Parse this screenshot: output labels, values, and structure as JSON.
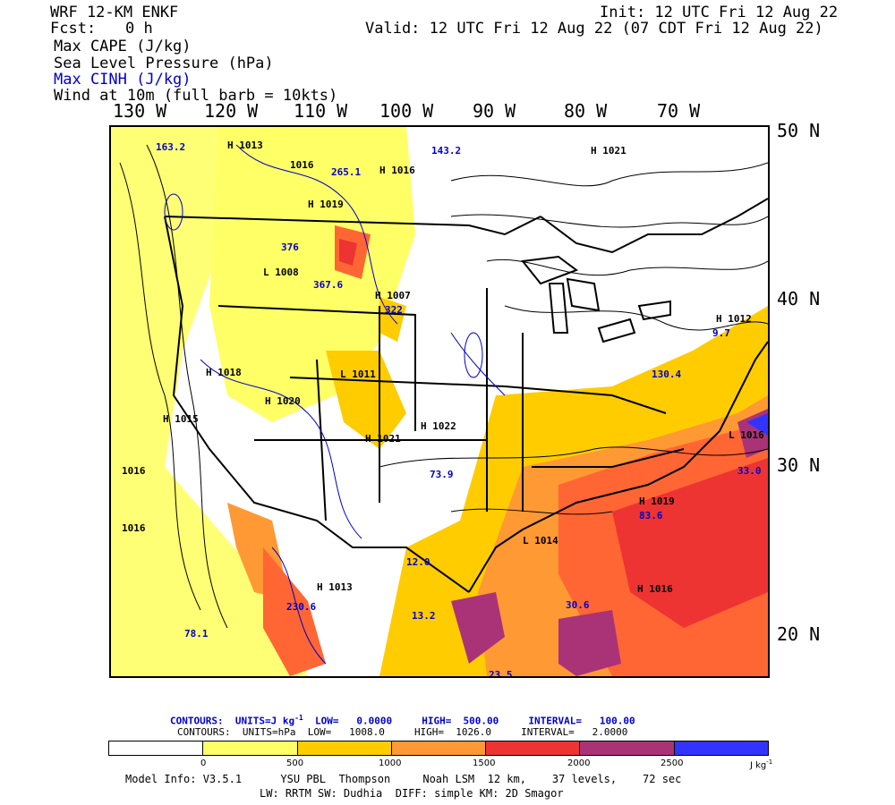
{
  "header": {
    "model": "WRF 12-KM ENKF",
    "fcst_label": "Fcst:",
    "fcst_value": "0 h",
    "init": "Init: 12 UTC Fri 12 Aug 22",
    "valid": "Valid: 12 UTC Fri 12 Aug 22 (07 CDT Fri 12 Aug 22)",
    "fields": [
      "Max CAPE (J/kg)",
      "Sea Level Pressure (hPa)",
      "Max CINH (J/kg)",
      "Wind at 10m (full barb = 10kts)"
    ]
  },
  "map": {
    "lon_labels": [
      "130 W",
      "120 W",
      "110 W",
      "100 W",
      "90 W",
      "80 W",
      "70 W"
    ],
    "lat_labels": [
      "50 N",
      "40 N",
      "30 N",
      "20 N"
    ],
    "pressure_labels": [
      {
        "type": "H",
        "value": "1016"
      },
      {
        "type": "H",
        "value": "1013"
      },
      {
        "type": "H",
        "value": "1016"
      },
      {
        "type": "H",
        "value": "1019"
      },
      {
        "type": "L",
        "value": "1008"
      },
      {
        "type": "H",
        "value": "1007"
      },
      {
        "type": "H",
        "value": "1011"
      },
      {
        "type": "H",
        "value": "1022"
      },
      {
        "type": "H",
        "value": "1021"
      },
      {
        "type": "H",
        "value": "1018"
      },
      {
        "type": "H",
        "value": "1020"
      },
      {
        "type": "H",
        "value": "1016"
      },
      {
        "type": "H",
        "value": "1013"
      },
      {
        "type": "L",
        "value": "1014"
      },
      {
        "type": "H",
        "value": "1016"
      },
      {
        "type": "H",
        "value": "1016"
      },
      {
        "type": "H",
        "value": "1015"
      },
      {
        "type": "H",
        "value": "1012"
      },
      {
        "type": "H",
        "value": "1019"
      },
      {
        "type": "L",
        "value": "1016"
      },
      {
        "type": "H",
        "value": "1021"
      }
    ],
    "cinh_labels": [
      "163.2",
      "265.1",
      "143.2",
      "376",
      "367.6",
      "322",
      "9.7",
      "130.4",
      "33.0",
      "83.6",
      "30.6",
      "78.1",
      "23.5",
      "12.0",
      "13.2",
      "230.6",
      "73.9"
    ]
  },
  "colors": {
    "white": "#ffffff",
    "yellow": "#ffff66",
    "gold": "#ffcc00",
    "orange": "#ff9933",
    "red_orange": "#ff6633",
    "red": "#ee3333",
    "magenta": "#aa3377",
    "blue": "#3333ff"
  },
  "legend": {
    "cinh_line": {
      "label": "CONTOURS:",
      "units": "UNITS=J kg",
      "units_sup": "-1",
      "low": "LOW=   0.0000",
      "high": "HIGH=  500.00",
      "interval": "INTERVAL=   100.00"
    },
    "slp_line": {
      "label": "CONTOURS:",
      "units": "UNITS=hPa",
      "low": "LOW=   1008.0",
      "high": "HIGH=  1026.0",
      "interval": "INTERVAL=   2.0000"
    },
    "ticks": [
      "0",
      "500",
      "1000",
      "1500",
      "2000",
      "2500"
    ],
    "units": "J kg",
    "units_sup": "-1"
  },
  "footer": {
    "line1_a": "Model Info: V3.5.1",
    "line1_b": "YSU PBL",
    "line1_c": "Thompson",
    "line1_d": "Noah LSM",
    "line1_e": "12 km,",
    "line1_f": "37 levels,",
    "line1_g": "72 sec",
    "line2": "LW: RRTM SW: Dudhia  DIFF: simple KM: 2D Smagor"
  }
}
